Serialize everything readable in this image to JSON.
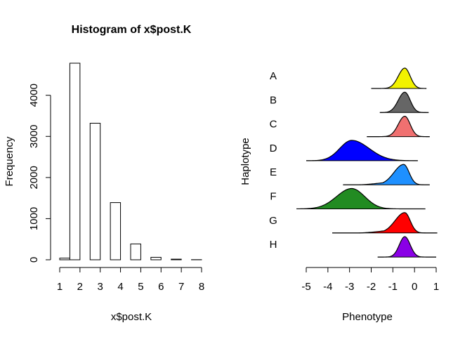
{
  "chart_data": [
    {
      "type": "bar",
      "title": "Histogram of x$post.K",
      "xlabel": "x$post.K",
      "ylabel": "Frequency",
      "bins": [
        {
          "from": 1.0,
          "to": 1.5,
          "count": 40
        },
        {
          "from": 1.5,
          "to": 2.0,
          "count": 4780
        },
        {
          "from": 2.0,
          "to": 2.5,
          "count": 0
        },
        {
          "from": 2.5,
          "to": 3.0,
          "count": 3320
        },
        {
          "from": 3.0,
          "to": 3.5,
          "count": 0
        },
        {
          "from": 3.5,
          "to": 4.0,
          "count": 1390
        },
        {
          "from": 4.0,
          "to": 4.5,
          "count": 0
        },
        {
          "from": 4.5,
          "to": 5.0,
          "count": 385
        },
        {
          "from": 5.0,
          "to": 5.5,
          "count": 0
        },
        {
          "from": 5.5,
          "to": 6.0,
          "count": 60
        },
        {
          "from": 6.0,
          "to": 6.5,
          "count": 0
        },
        {
          "from": 6.5,
          "to": 7.0,
          "count": 15
        },
        {
          "from": 7.0,
          "to": 7.5,
          "count": 0
        },
        {
          "from": 7.5,
          "to": 8.0,
          "count": 3
        }
      ],
      "x_ticks": [
        "1",
        "2",
        "3",
        "4",
        "5",
        "6",
        "7",
        "8"
      ],
      "y_ticks": [
        "0",
        "1000",
        "2000",
        "3000",
        "4000"
      ],
      "xlim": [
        1,
        8
      ],
      "ylim": [
        0,
        4780
      ],
      "grid": false
    },
    {
      "type": "area",
      "xlabel": "Phenotype",
      "ylabel": "Haplotype",
      "x_ticks": [
        "-5",
        "-4",
        "-3",
        "-2",
        "-1",
        "0",
        "1"
      ],
      "xlim": [
        -5,
        1
      ],
      "grid": false,
      "series": [
        {
          "name": "A",
          "color": "#F2F200",
          "mean": -0.45,
          "sd_left": 0.3,
          "sd_right": 0.25,
          "from": -2.0,
          "to": 0.55
        },
        {
          "name": "B",
          "color": "#666666",
          "mean": -0.45,
          "sd_left": 0.3,
          "sd_right": 0.25,
          "from": -1.6,
          "to": 0.65
        },
        {
          "name": "C",
          "color": "#F07070",
          "mean": -0.45,
          "sd_left": 0.3,
          "sd_right": 0.25,
          "from": -2.2,
          "to": 0.7
        },
        {
          "name": "D",
          "color": "#0000FF",
          "mean": -2.9,
          "sd_left": 0.55,
          "sd_right": 0.8,
          "from": -5.0,
          "to": 0.15
        },
        {
          "name": "E",
          "color": "#1E90FF",
          "mean": -0.5,
          "sd_left": 0.45,
          "sd_right": 0.25,
          "from": -3.3,
          "to": 0.7
        },
        {
          "name": "F",
          "color": "#228B22",
          "mean": -2.9,
          "sd_left": 0.7,
          "sd_right": 0.6,
          "from": -5.45,
          "to": 0.5
        },
        {
          "name": "G",
          "color": "#FF0000",
          "mean": -0.45,
          "sd_left": 0.45,
          "sd_right": 0.25,
          "from": -3.8,
          "to": 1.05
        },
        {
          "name": "H",
          "color": "#8A00E6",
          "mean": -0.45,
          "sd_left": 0.25,
          "sd_right": 0.25,
          "from": -1.7,
          "to": 1.0
        }
      ],
      "shoulder": {
        "G": {
          "start": -2.6,
          "level": 0.25
        },
        "E": {
          "start": -2.6,
          "level": 0.25
        }
      }
    }
  ]
}
